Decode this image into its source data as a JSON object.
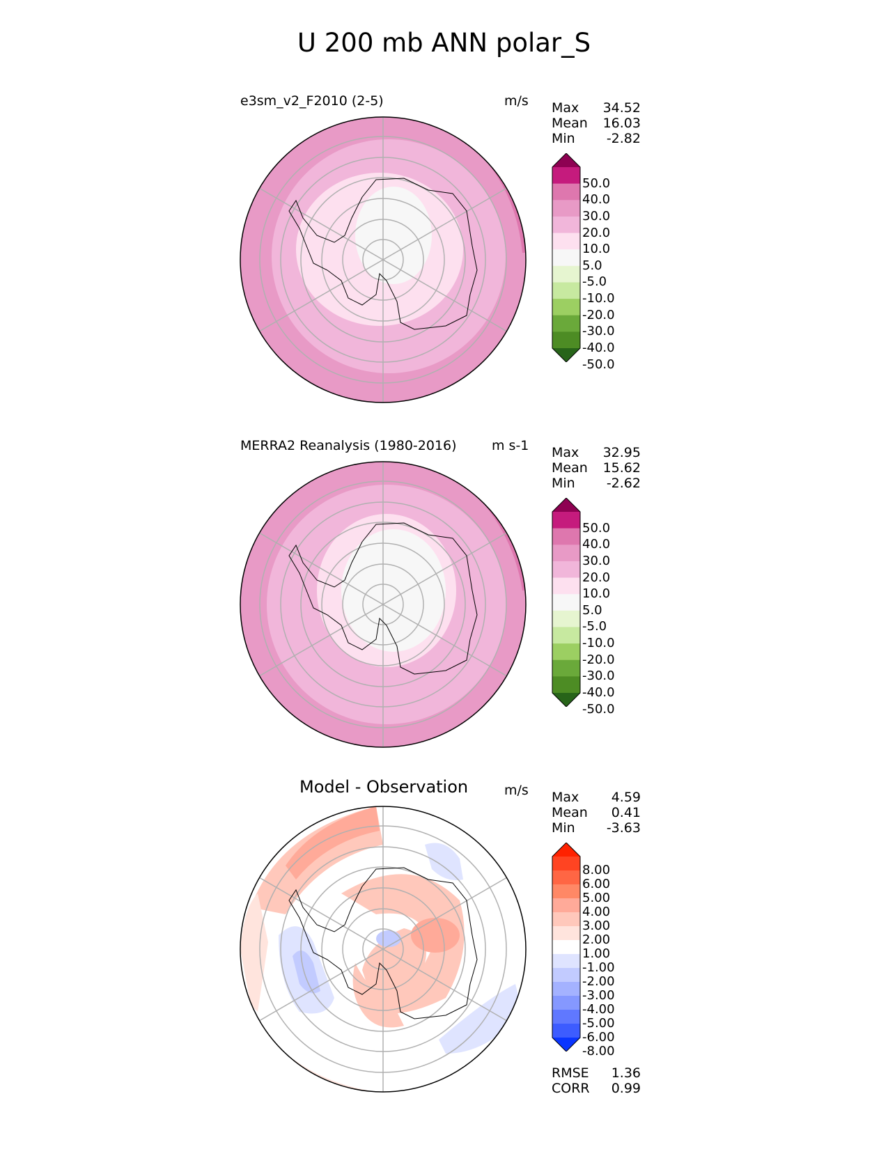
{
  "title": "U 200 mb ANN polar_S",
  "panels": [
    {
      "name": "e3sm_v2_F2010 (2-5)",
      "units": "m/s",
      "stats": [
        {
          "k": "Max",
          "v": "34.52"
        },
        {
          "k": "Mean",
          "v": "16.03"
        },
        {
          "k": "Min",
          "v": "-2.82"
        }
      ],
      "colorbar": {
        "labels": [
          "50.0",
          "40.0",
          "30.0",
          "20.0",
          "10.0",
          "5.0",
          "-5.0",
          "-10.0",
          "-20.0",
          "-30.0",
          "-40.0",
          "-50.0"
        ],
        "colors": [
          "#8e0152",
          "#c51b7d",
          "#de77ae",
          "#e89ac6",
          "#f1b6da",
          "#fde0ef",
          "#f7f7f7",
          "#e6f5d0",
          "#c7e9a0",
          "#9ccf62",
          "#6aa93a",
          "#4d8c24",
          "#276419"
        ]
      }
    },
    {
      "name": "MERRA2 Reanalysis (1980-2016)",
      "units": "m s-1",
      "stats": [
        {
          "k": "Max",
          "v": "32.95"
        },
        {
          "k": "Mean",
          "v": "15.62"
        },
        {
          "k": "Min",
          "v": "-2.62"
        }
      ],
      "colorbar": {
        "labels": [
          "50.0",
          "40.0",
          "30.0",
          "20.0",
          "10.0",
          "5.0",
          "-5.0",
          "-10.0",
          "-20.0",
          "-30.0",
          "-40.0",
          "-50.0"
        ],
        "colors": [
          "#8e0152",
          "#c51b7d",
          "#de77ae",
          "#e89ac6",
          "#f1b6da",
          "#fde0ef",
          "#f7f7f7",
          "#e6f5d0",
          "#c7e9a0",
          "#9ccf62",
          "#6aa93a",
          "#4d8c24",
          "#276419"
        ]
      }
    },
    {
      "name": "Model - Observation",
      "units": "m/s",
      "stats": [
        {
          "k": "Max",
          "v": "4.59"
        },
        {
          "k": "Mean",
          "v": "0.41"
        },
        {
          "k": "Min",
          "v": "-3.63"
        }
      ],
      "extra_stats": [
        {
          "k": "RMSE",
          "v": "1.36"
        },
        {
          "k": "CORR",
          "v": "0.99"
        }
      ],
      "colorbar": {
        "labels": [
          "8.00",
          "6.00",
          "5.00",
          "4.00",
          "3.00",
          "2.00",
          "1.00",
          "-1.00",
          "-2.00",
          "-3.00",
          "-4.00",
          "-5.00",
          "-6.00",
          "-8.00"
        ],
        "colors": [
          "#ff2200",
          "#ff4422",
          "#ff6644",
          "#ff8866",
          "#ffaa99",
          "#ffc8bb",
          "#ffe4dd",
          "#ffffff",
          "#dfe4ff",
          "#c2cbff",
          "#a4b2ff",
          "#8598ff",
          "#6078ff",
          "#3d5cff",
          "#0a35ff"
        ]
      }
    }
  ]
}
